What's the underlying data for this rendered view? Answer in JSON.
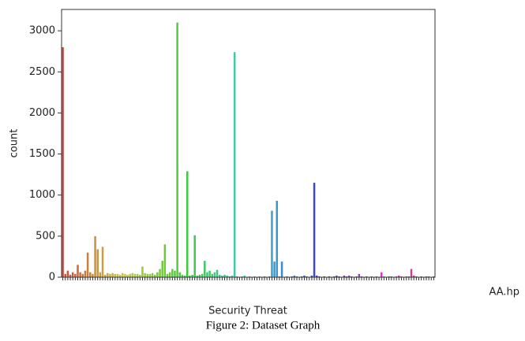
{
  "chart_data": {
    "type": "bar",
    "xlabel": "Security Threat",
    "ylabel": "count",
    "caption": "Figure 2: Dataset Graph",
    "palette": "husl",
    "categories": [
      null,
      null,
      null,
      null,
      null,
      null,
      null,
      null,
      null,
      null,
      null,
      null,
      null,
      null,
      null,
      null,
      null,
      null,
      null,
      null,
      null,
      null,
      null,
      null,
      null,
      null,
      null,
      null,
      null,
      null,
      null,
      null,
      null,
      null,
      null,
      null,
      null,
      null,
      null,
      null,
      null,
      null,
      null,
      null,
      null,
      null,
      null,
      null,
      null,
      null,
      null,
      null,
      null,
      null,
      null,
      null,
      null,
      null,
      null,
      null,
      null,
      null,
      null,
      null,
      null,
      null,
      null,
      null,
      null,
      null,
      null,
      null,
      null,
      null,
      null,
      null,
      null,
      null,
      null,
      null,
      null,
      null,
      null,
      null,
      null,
      null,
      null,
      null,
      null,
      null,
      null,
      null,
      null,
      null,
      null,
      null,
      null,
      null,
      null,
      null,
      null,
      null,
      null,
      null,
      null,
      null,
      null,
      null,
      null,
      null,
      null,
      null,
      null,
      null,
      null,
      null,
      null,
      null,
      null,
      null,
      null,
      null,
      null,
      null,
      null,
      null,
      null,
      null,
      null,
      null,
      null,
      null,
      null,
      null,
      null,
      null,
      null,
      null,
      null,
      null,
      null,
      null,
      null,
      null,
      null,
      null,
      null,
      null,
      null,
      "AA.hp"
    ],
    "values": [
      2800,
      40,
      80,
      30,
      60,
      40,
      150,
      60,
      40,
      80,
      300,
      60,
      40,
      500,
      340,
      60,
      370,
      30,
      50,
      40,
      50,
      40,
      40,
      30,
      50,
      40,
      30,
      40,
      50,
      40,
      40,
      30,
      130,
      50,
      40,
      40,
      50,
      30,
      60,
      100,
      200,
      400,
      40,
      60,
      100,
      80,
      3100,
      60,
      30,
      20,
      1290,
      20,
      30,
      510,
      20,
      30,
      40,
      200,
      60,
      80,
      40,
      60,
      90,
      30,
      20,
      30,
      20,
      10,
      20,
      2740,
      10,
      0,
      10,
      20,
      0,
      10,
      0,
      10,
      0,
      10,
      0,
      10,
      0,
      10,
      810,
      190,
      930,
      10,
      190,
      0,
      10,
      0,
      10,
      20,
      10,
      0,
      10,
      20,
      10,
      0,
      20,
      1150,
      20,
      10,
      0,
      10,
      0,
      10,
      0,
      10,
      20,
      10,
      0,
      20,
      10,
      20,
      10,
      0,
      10,
      40,
      10,
      0,
      10,
      0,
      10,
      0,
      10,
      0,
      60,
      10,
      0,
      10,
      10,
      0,
      10,
      20,
      10,
      0,
      10,
      10,
      100,
      20,
      10,
      0,
      10,
      0,
      10,
      10,
      0,
      10
    ],
    "ylim": [
      0,
      3260
    ],
    "yticks": [
      0,
      500,
      1000,
      1500,
      2000,
      2500,
      3000
    ]
  }
}
